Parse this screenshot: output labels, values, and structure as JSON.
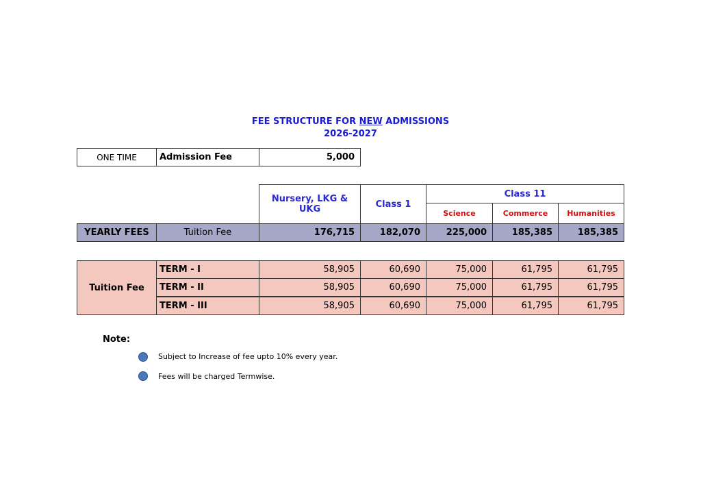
{
  "title": {
    "pre": "FEE STRUCTURE FOR ",
    "emph": "NEW",
    "post": " ADMISSIONS",
    "year": "2026-2027"
  },
  "one_time": {
    "label": "ONE TIME",
    "item": "Admission Fee",
    "amount": "5,000"
  },
  "headers": {
    "nursery": "Nursery, LKG & UKG",
    "class1": "Class 1",
    "class11": "Class 11",
    "science": "Science",
    "commerce": "Commerce",
    "humanities": "Humanities"
  },
  "yearly": {
    "label": "YEARLY FEES",
    "item": "Tuition Fee",
    "values": [
      "176,715",
      "182,070",
      "225,000",
      "185,385",
      "185,385"
    ]
  },
  "terms": {
    "label": "Tuition Fee",
    "rows": [
      {
        "term": "TERM - I",
        "values": [
          "58,905",
          "60,690",
          "75,000",
          "61,795",
          "61,795"
        ]
      },
      {
        "term": "TERM - II",
        "values": [
          "58,905",
          "60,690",
          "75,000",
          "61,795",
          "61,795"
        ]
      },
      {
        "term": "TERM - III",
        "values": [
          "58,905",
          "60,690",
          "75,000",
          "61,795",
          "61,795"
        ]
      }
    ]
  },
  "note": {
    "heading": "Note:",
    "items": [
      "Subject to Increase of fee upto 10% every year.",
      "Fees will be charged Termwise."
    ]
  },
  "colors": {
    "title": "#1a1ad6",
    "subheader": "#d01010",
    "yearly_bg": "#a7a7c7",
    "term_bg": "#f4c7bf"
  }
}
